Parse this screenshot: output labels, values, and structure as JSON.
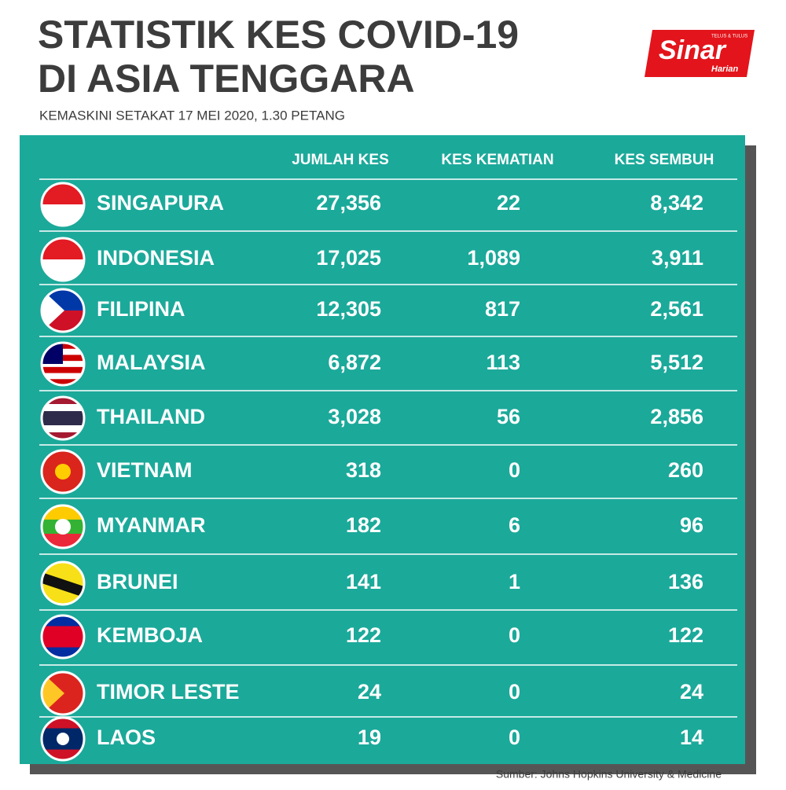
{
  "header": {
    "title_lines": [
      "STATISTIK KES COVID-19",
      "DI ASIA TENGGARA"
    ],
    "subtitle": "KEMASKINI SETAKAT 17 MEI 2020, 1.30 PETANG",
    "logo": {
      "name": "Sinar",
      "sub": "Harian",
      "tagline": "TELUS & TULUS"
    }
  },
  "table": {
    "columns": [
      "JUMLAH KES",
      "KES KEMATIAN",
      "KES SEMBUH"
    ],
    "rows": [
      [
        "SINGAPURA",
        "27,356",
        "22",
        "8,342"
      ],
      [
        "INDONESIA",
        "17,025",
        "1,089",
        "3,911"
      ],
      [
        "FILIPINA",
        "12,305",
        "817",
        "2,561"
      ],
      [
        "MALAYSIA",
        "6,872",
        "113",
        "5,512"
      ],
      [
        "THAILAND",
        "3,028",
        "56",
        "2,856"
      ],
      [
        "VIETNAM",
        "318",
        "0",
        "260"
      ],
      [
        "MYANMAR",
        "182",
        "6",
        "96"
      ],
      [
        "BRUNEI",
        "141",
        "1",
        "136"
      ],
      [
        "KEMBOJA",
        "122",
        "0",
        "122"
      ],
      [
        "TIMOR LESTE",
        "24",
        "0",
        "24"
      ],
      [
        "LAOS",
        "19",
        "0",
        "14"
      ]
    ]
  },
  "footer": {
    "source": "Sumber: Johns Hopkins University & Medicine"
  }
}
